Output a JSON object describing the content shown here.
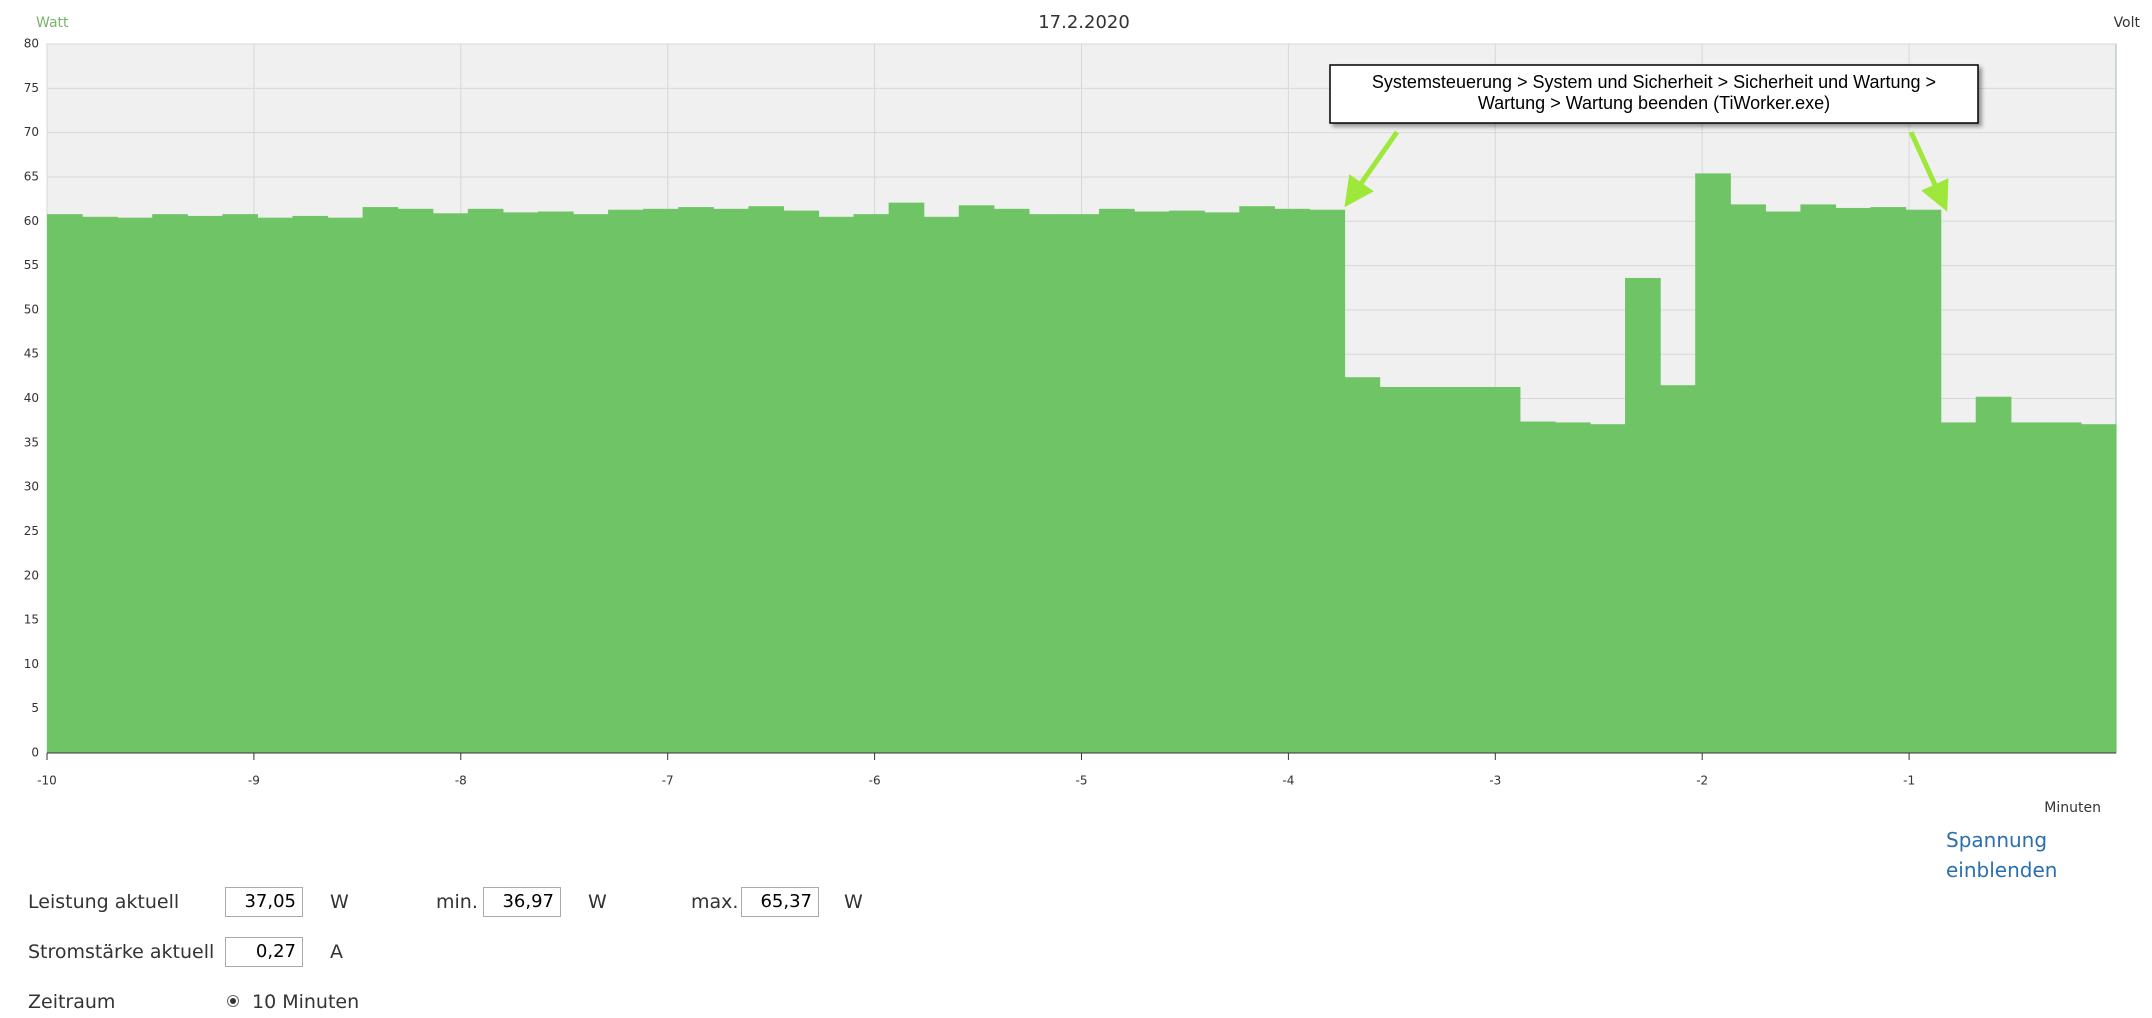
{
  "chart_data": {
    "type": "bar",
    "title": "17.2.2020",
    "y_label": "Watt",
    "y2_label": "Volt",
    "x_label": "Minuten",
    "annotation": [
      "Systemsteuerung > System und Sicherheit > Sicherheit und Wartung >",
      "Wartung > Wartung beenden (TiWorker.exe)"
    ],
    "color": "#6fc466",
    "values": [
      60.8,
      60.5,
      60.4,
      60.8,
      60.6,
      60.8,
      60.4,
      60.6,
      60.4,
      61.6,
      61.4,
      60.9,
      61.4,
      61.0,
      61.1,
      60.8,
      61.3,
      61.4,
      61.6,
      61.4,
      61.7,
      61.2,
      60.5,
      60.8,
      62.1,
      60.5,
      61.8,
      61.4,
      60.8,
      60.8,
      61.4,
      61.1,
      61.2,
      61.0,
      61.7,
      61.4,
      61.3,
      42.4,
      41.3,
      41.3,
      41.3,
      41.3,
      37.4,
      37.3,
      37.1,
      53.6,
      41.5,
      65.4,
      61.9,
      61.1,
      61.9,
      61.5,
      61.6,
      61.3,
      37.3,
      40.2,
      37.3,
      37.3,
      37.1
    ],
    "xlim": [
      -10,
      0
    ],
    "xticks": [
      -10,
      -9,
      -8,
      -7,
      -6,
      -5,
      -4,
      -3,
      -2,
      -1
    ],
    "ylim": [
      0,
      80
    ],
    "yticks": [
      0,
      5,
      10,
      15,
      20,
      25,
      30,
      35,
      40,
      45,
      50,
      55,
      60,
      65,
      70,
      75,
      80
    ],
    "grid": true
  },
  "controls": {
    "link": "Spannung einblenden",
    "power": {
      "label": "Leistung aktuell",
      "value": "37,05",
      "unit": "W",
      "min_label": "min.",
      "min": "36,97",
      "min_unit": "W",
      "max_label": "max.",
      "max": "65,37",
      "max_unit": "W"
    },
    "current": {
      "label": "Stromstärke aktuell",
      "value": "0,27",
      "unit": "A"
    },
    "period": {
      "label": "Zeitraum",
      "option": "10 Minuten"
    }
  }
}
